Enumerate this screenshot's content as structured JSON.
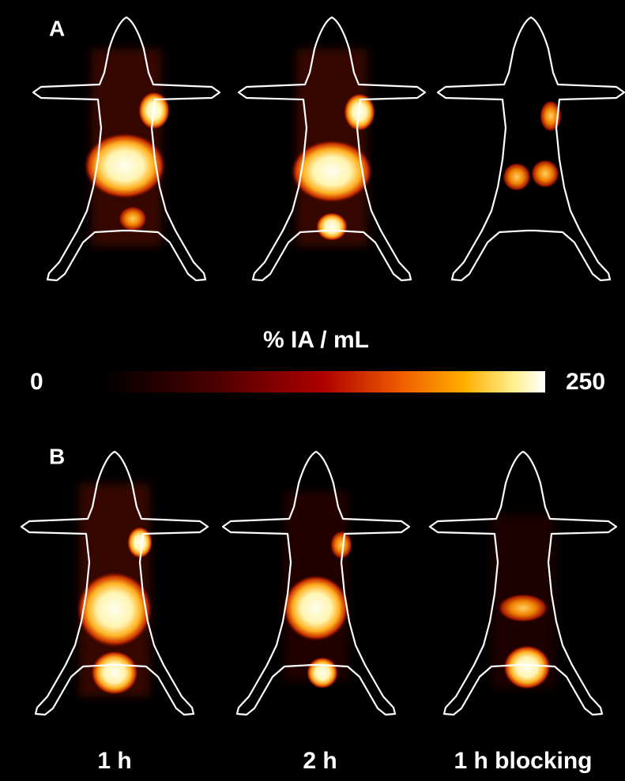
{
  "panels": [
    {
      "label": "A"
    },
    {
      "label": "B"
    }
  ],
  "colorbar": {
    "label": "% IA / mL",
    "min": 0,
    "max": 250
  },
  "columns": [
    "1 h",
    "2 h",
    "1 h blocking"
  ]
}
